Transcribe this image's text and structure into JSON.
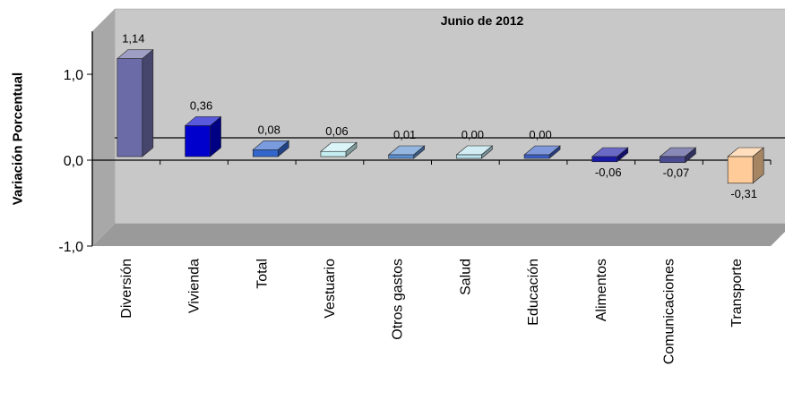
{
  "chart_data": {
    "type": "bar",
    "title": "Junio de 2012",
    "ylabel": "Variación Porcentual",
    "xlabel": "",
    "ylim": [
      -1.0,
      1.5
    ],
    "yticks": [
      -1.0,
      0.0,
      1.0
    ],
    "ytick_labels": [
      "-1,0",
      "0,0",
      "1,0"
    ],
    "grid": false,
    "legend": "none",
    "categories": [
      "Diversión",
      "Vivienda",
      "Total",
      "Vestuario",
      "Otros gastos",
      "Salud",
      "Educación",
      "Alimentos",
      "Comunicaciones",
      "Transporte"
    ],
    "values": [
      1.14,
      0.36,
      0.08,
      0.06,
      0.01,
      0.0,
      0.0,
      -0.06,
      -0.07,
      -0.31
    ],
    "value_labels": [
      "1,14",
      "0,36",
      "0,08",
      "0,06",
      "0,01",
      "0,00",
      "0,00",
      "-0,06",
      "-0,07",
      "-0,31"
    ],
    "colors": [
      "#6b6ba8",
      "#0000cc",
      "#3366cc",
      "#c6eef2",
      "#5a8fd0",
      "#b8e2ec",
      "#3a5fc8",
      "#1a1aa8",
      "#4a4a90",
      "#ffcc99"
    ],
    "plot_background": "#c8c8c8",
    "wall_colors": {
      "left": "#a8a8a8",
      "floor": "#9a9a9a"
    }
  }
}
